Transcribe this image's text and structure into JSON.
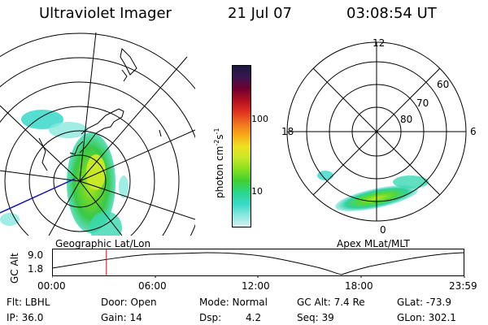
{
  "header": {
    "title": "Ultraviolet Imager",
    "date": "21 Jul 07",
    "time": "03:08:54 UT"
  },
  "colorbar": {
    "unit_label": "photon cm",
    "unit_sup1": "-2",
    "unit_mid": "s",
    "unit_sup2": "-1",
    "ticks": [
      "100",
      "10"
    ],
    "colors": [
      "#1a1a40",
      "#3a1550",
      "#700030",
      "#b01020",
      "#e03020",
      "#f07020",
      "#f8a818",
      "#f0e020",
      "#c8e828",
      "#88e020",
      "#40d030",
      "#28d888",
      "#38d8c8",
      "#88e8e0",
      "#d8f0f0"
    ]
  },
  "left_panel": {
    "caption": "Geographic Lat/Lon"
  },
  "right_panel": {
    "caption": "Apex MLat/MLT",
    "mlt_labels": {
      "top": "12",
      "left": "18",
      "right": "6",
      "bottom": "0"
    },
    "lat_labels": [
      "60",
      "70",
      "80"
    ]
  },
  "altitude_plot": {
    "ylabel": "GC Alt",
    "yticks": [
      "9.0",
      "1.8"
    ],
    "xticks": [
      "00:00",
      "06:00",
      "12:00",
      "18:00",
      "23:59"
    ],
    "current_time_fraction": 0.132
  },
  "footer": {
    "filter": "Flt: LBHL",
    "door": "Door: Open",
    "mode": "Mode: Normal",
    "gc_alt": "GC Alt: 7.4 Re",
    "glat": "GLat: -73.9",
    "ip": "IP: 36.0",
    "gain": "Gain: 14",
    "dsp_label": "Dsp:",
    "dsp_value": "4.2",
    "seq": "Seq: 39",
    "glon": "GLon: 302.1"
  }
}
